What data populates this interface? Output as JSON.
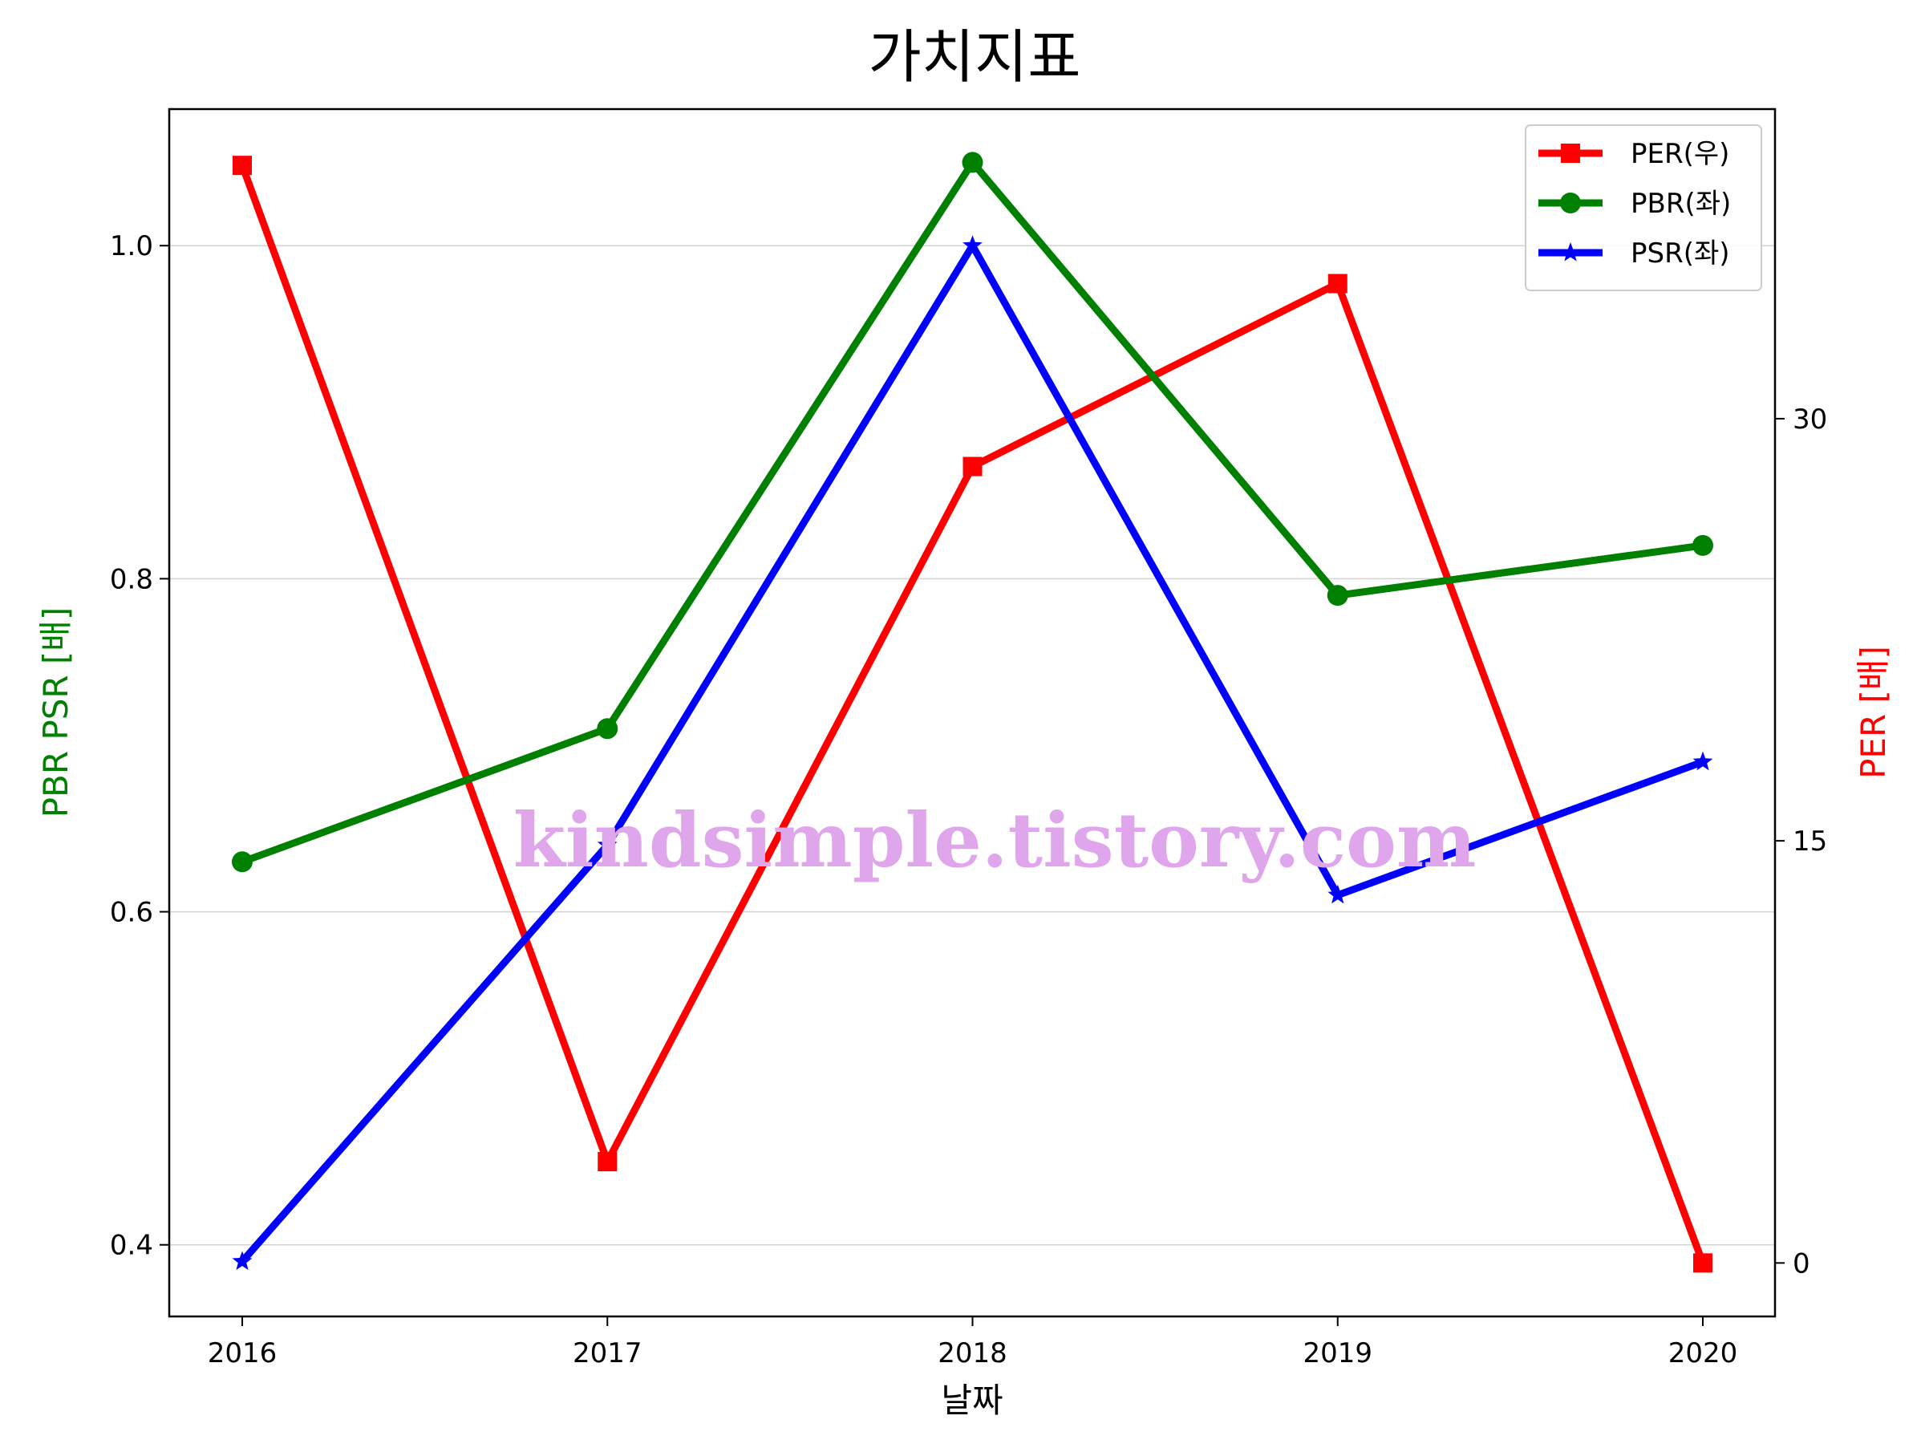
{
  "chart_data": {
    "type": "line",
    "title": "가치지표",
    "xlabel": "날짜",
    "ylabel_left": "PBR PSR [배]",
    "ylabel_right": "PER [배]",
    "categories": [
      "2016",
      "2017",
      "2018",
      "2019",
      "2020"
    ],
    "left_axis": {
      "ylim": [
        0.357,
        1.082
      ],
      "ticks": [
        0.4,
        0.6,
        0.8,
        1.0
      ],
      "tick_labels": [
        "0.4",
        "0.6",
        "0.8",
        "1.0"
      ],
      "grid": true
    },
    "right_axis": {
      "ylim": [
        -1.9,
        41.0
      ],
      "ticks": [
        0,
        15,
        30
      ],
      "tick_labels": [
        "0",
        "15",
        "30"
      ],
      "grid": false
    },
    "series": [
      {
        "name": "PER(우)",
        "axis": "right",
        "color": "#ff0000",
        "marker": "square",
        "values": [
          39.0,
          3.6,
          28.3,
          34.8,
          0.0
        ]
      },
      {
        "name": "PBR(좌)",
        "axis": "left",
        "color": "#008000",
        "marker": "circle",
        "values": [
          0.63,
          0.71,
          1.05,
          0.79,
          0.82
        ]
      },
      {
        "name": "PSR(좌)",
        "axis": "left",
        "color": "#0000ff",
        "marker": "star",
        "values": [
          0.39,
          0.64,
          1.0,
          0.61,
          0.69
        ]
      }
    ],
    "legend_position": "top-right",
    "watermark": "kindsimple.tistory.com"
  }
}
